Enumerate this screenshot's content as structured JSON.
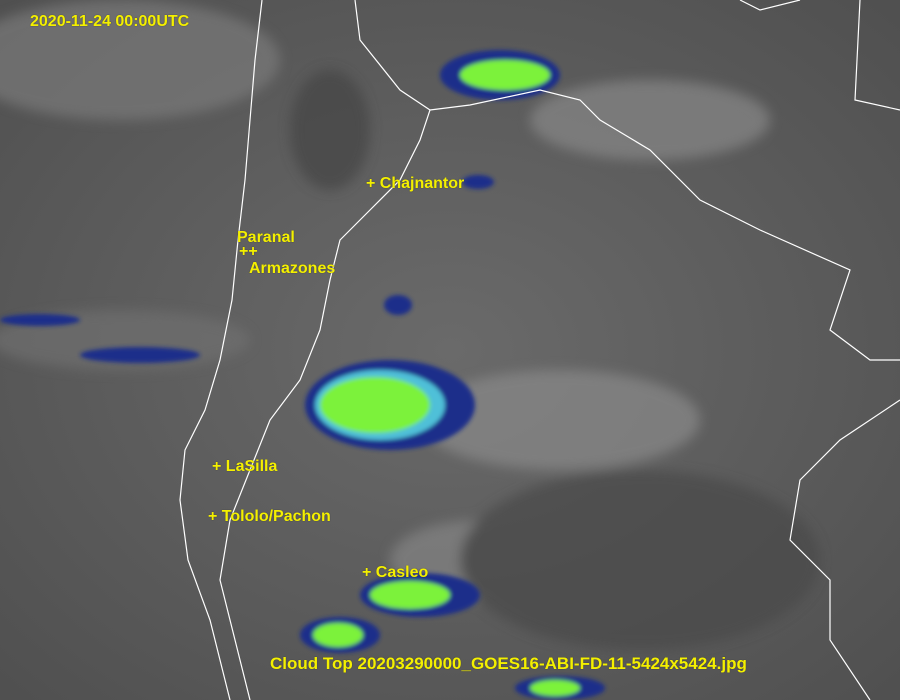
{
  "timestamp": "2020-11-24 00:00UTC",
  "caption": "Cloud Top 20203290000_GOES16-ABI-FD-11-5424x5424.jpg",
  "sites": [
    {
      "name": "+ Chajnantor"
    },
    {
      "name": "Paranal"
    },
    {
      "name": "++"
    },
    {
      "name": "Armazones"
    },
    {
      "name": "+ LaSilla"
    },
    {
      "name": "+ Tololo/Pachon"
    },
    {
      "name": "+ Casleo"
    }
  ],
  "colors": {
    "label": "#f4f000",
    "border": "#ffffff",
    "cold_cloud_core": "#7cf23a",
    "cold_cloud_edge": "#1a2f8a",
    "cloud_mid": "#4fc0d8"
  }
}
